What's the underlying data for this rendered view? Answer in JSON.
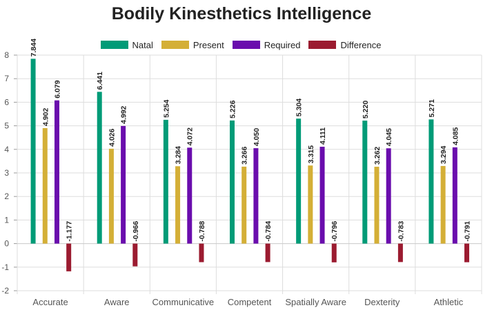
{
  "chart_data": {
    "type": "bar",
    "title": "Bodily Kinesthetics Intelligence",
    "categories": [
      "Accurate",
      "Aware",
      "Communicative",
      "Competent",
      "Spatially Aware",
      "Dexterity",
      "Athletic"
    ],
    "series": [
      {
        "name": "Natal",
        "color": "#009b77",
        "values": [
          7.844,
          6.441,
          5.254,
          5.226,
          5.304,
          5.22,
          5.271
        ],
        "labels": [
          "7.844",
          "6.441",
          "5.254",
          "5.226",
          "5.304",
          "5.220",
          "5.271"
        ]
      },
      {
        "name": "Present",
        "color": "#d4af37",
        "values": [
          4.902,
          4.026,
          3.284,
          3.266,
          3.315,
          3.262,
          3.294
        ],
        "labels": [
          "4.902",
          "4.026",
          "3.284",
          "3.266",
          "3.315",
          "3.262",
          "3.294"
        ]
      },
      {
        "name": "Required",
        "color": "#6a0dad",
        "values": [
          6.079,
          4.992,
          4.072,
          4.05,
          4.111,
          4.045,
          4.085
        ],
        "labels": [
          "6.079",
          "4.992",
          "4.072",
          "4.050",
          "4.111",
          "4.045",
          "4.085"
        ]
      },
      {
        "name": "Difference",
        "color": "#9b1b30",
        "values": [
          -1.177,
          -0.966,
          -0.788,
          -0.784,
          -0.796,
          -0.783,
          -0.791
        ],
        "labels": [
          "-1.177",
          "-0.966",
          "-0.788",
          "-0.784",
          "-0.796",
          "-0.783",
          "-0.791"
        ]
      }
    ],
    "ylim": [
      -2,
      8
    ],
    "yticks": [
      "-2",
      "-1",
      "0",
      "1",
      "2",
      "3",
      "4",
      "5",
      "6",
      "7",
      "8"
    ],
    "grid": true,
    "legend_position": "top-center"
  }
}
